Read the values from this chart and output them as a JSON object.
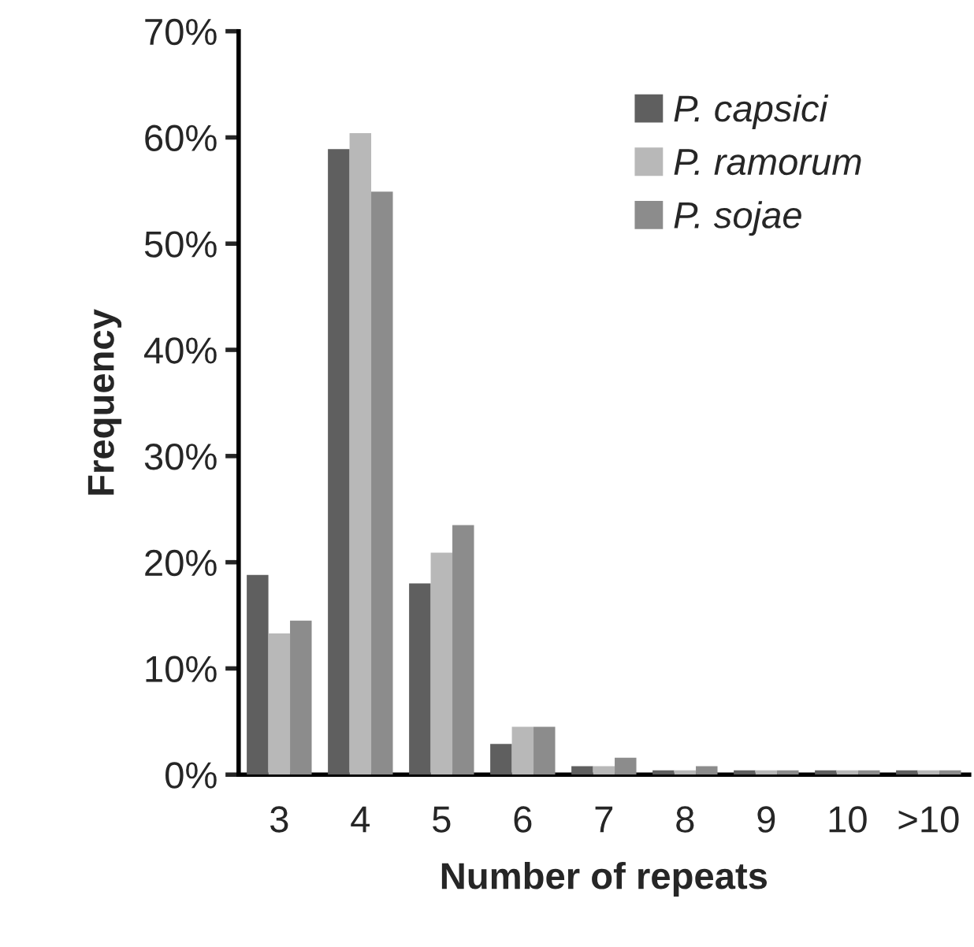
{
  "chart_data": {
    "type": "bar",
    "xlabel": "Number of repeats",
    "ylabel": "Frequency",
    "categories": [
      "3",
      "4",
      "5",
      "6",
      "7",
      "8",
      "9",
      "10",
      ">10"
    ],
    "series": [
      {
        "name": "P. capsici",
        "color": "#5f5f5f",
        "values": [
          18.8,
          58.9,
          18.0,
          2.9,
          0.8,
          0.4,
          0.4,
          0.4,
          0.4
        ]
      },
      {
        "name": "P. ramorum",
        "color": "#b8b8b8",
        "values": [
          13.3,
          60.4,
          20.9,
          4.5,
          0.8,
          0.4,
          0.4,
          0.4,
          0.4
        ]
      },
      {
        "name": "P. sojae",
        "color": "#8c8c8c",
        "values": [
          14.5,
          54.9,
          23.5,
          4.5,
          1.6,
          0.8,
          0.4,
          0.4,
          0.4
        ]
      }
    ],
    "ylim": [
      0,
      70
    ],
    "yticks": [
      {
        "value": 0,
        "label": "0%"
      },
      {
        "value": 10,
        "label": "10%"
      },
      {
        "value": 20,
        "label": "20%"
      },
      {
        "value": 30,
        "label": "30%"
      },
      {
        "value": 40,
        "label": "40%"
      },
      {
        "value": 50,
        "label": "50%"
      },
      {
        "value": 60,
        "label": "60%"
      },
      {
        "value": 70,
        "label": "70%"
      }
    ],
    "grid": false,
    "legend": "top right"
  }
}
